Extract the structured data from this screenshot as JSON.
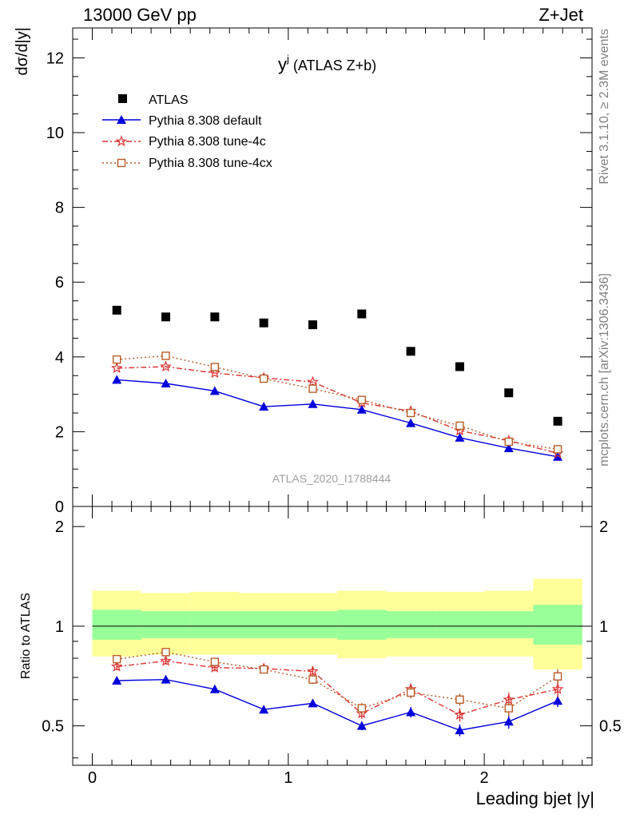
{
  "header": {
    "left": "13000 GeV pp",
    "right": "Z+Jet"
  },
  "side": {
    "rivet": "Rivet 3.1.10, ≥ 2.3M events",
    "mcplots": "mcplots.cern.ch [arXiv:1306.3436]"
  },
  "watermark": "ATLAS_2020_I1788444",
  "plot_title_main": "y",
  "plot_title_sup": "j",
  "plot_title_rest": " (ATLAS Z+b)",
  "colors": {
    "data": "#000000",
    "default": "#0000dd",
    "tune4c": "#dd3333",
    "tune4cx": "#b85c28",
    "band_inner": "#99ff99",
    "band_outer": "#ffff99"
  },
  "chart_data": [
    {
      "type": "scatter",
      "ylabel": "dσ/d|y|",
      "xlim": [
        -0.1,
        2.55
      ],
      "ylim": [
        0,
        12.8
      ],
      "yticks": [
        0,
        2,
        4,
        6,
        8,
        10,
        12
      ],
      "x": [
        0.125,
        0.375,
        0.625,
        0.875,
        1.125,
        1.375,
        1.625,
        1.875,
        2.125,
        2.375
      ],
      "bin_edges": [
        0,
        0.25,
        0.5,
        0.75,
        1.0,
        1.25,
        1.5,
        1.75,
        2.0,
        2.25,
        2.5
      ],
      "series": [
        {
          "name": "ATLAS",
          "style": "data",
          "values": [
            5.25,
            5.07,
            5.07,
            4.91,
            4.86,
            5.15,
            4.15,
            3.74,
            3.04,
            2.28
          ]
        },
        {
          "name": "Pythia 8.308 default",
          "style": "default",
          "values": [
            3.39,
            3.29,
            3.09,
            2.67,
            2.74,
            2.59,
            2.23,
            1.84,
            1.56,
            1.33
          ]
        },
        {
          "name": "Pythia 8.308 tune-4c",
          "style": "tune4c",
          "values": [
            3.7,
            3.74,
            3.57,
            3.44,
            3.33,
            2.77,
            2.55,
            2.03,
            1.76,
            1.42
          ]
        },
        {
          "name": "Pythia 8.308 tune-4cx",
          "style": "tune4cx",
          "values": [
            3.93,
            4.03,
            3.73,
            3.42,
            3.15,
            2.85,
            2.5,
            2.16,
            1.73,
            1.53
          ]
        }
      ]
    },
    {
      "type": "scatter",
      "ylabel": "Ratio to ATLAS",
      "xlabel": "Leading bjet |y|",
      "xlim": [
        -0.1,
        2.55
      ],
      "ylim": [
        0.38,
        2.3
      ],
      "yticks": [
        0.5,
        1,
        2
      ],
      "xticks": [
        0,
        1,
        2
      ],
      "x": [
        0.125,
        0.375,
        0.625,
        0.875,
        1.125,
        1.375,
        1.625,
        1.875,
        2.125,
        2.375
      ],
      "band_edges": [
        0,
        0.25,
        0.5,
        0.75,
        1.0,
        1.25,
        1.5,
        1.75,
        2.0,
        2.25,
        2.5
      ],
      "band_inner": {
        "low": [
          0.91,
          0.92,
          0.92,
          0.92,
          0.92,
          0.91,
          0.92,
          0.92,
          0.92,
          0.88
        ],
        "high": [
          1.12,
          1.11,
          1.11,
          1.11,
          1.11,
          1.12,
          1.11,
          1.11,
          1.11,
          1.16
        ]
      },
      "band_outer": {
        "low": [
          0.81,
          0.82,
          0.82,
          0.82,
          0.82,
          0.8,
          0.81,
          0.81,
          0.81,
          0.74
        ],
        "high": [
          1.28,
          1.26,
          1.27,
          1.26,
          1.26,
          1.28,
          1.27,
          1.27,
          1.28,
          1.39
        ]
      },
      "series": [
        {
          "name": "Pythia 8.308 default",
          "style": "default",
          "values": [
            0.685,
            0.69,
            0.645,
            0.56,
            0.585,
            0.5,
            0.55,
            0.485,
            0.515,
            0.595
          ],
          "errors": [
            0.015,
            0.015,
            0.015,
            0.015,
            0.015,
            0.015,
            0.02,
            0.02,
            0.025,
            0.025
          ]
        },
        {
          "name": "Pythia 8.308 tune-4c",
          "style": "tune4c",
          "values": [
            0.755,
            0.785,
            0.75,
            0.745,
            0.73,
            0.545,
            0.645,
            0.54,
            0.6,
            0.645
          ],
          "errors": [
            0.02,
            0.02,
            0.02,
            0.02,
            0.02,
            0.02,
            0.025,
            0.025,
            0.03,
            0.035
          ]
        },
        {
          "name": "Pythia 8.308 tune-4cx",
          "style": "tune4cx",
          "values": [
            0.795,
            0.835,
            0.78,
            0.74,
            0.69,
            0.565,
            0.63,
            0.6,
            0.565,
            0.705
          ],
          "errors": [
            0.02,
            0.02,
            0.02,
            0.02,
            0.02,
            0.02,
            0.025,
            0.025,
            0.03,
            0.035
          ]
        }
      ]
    }
  ]
}
